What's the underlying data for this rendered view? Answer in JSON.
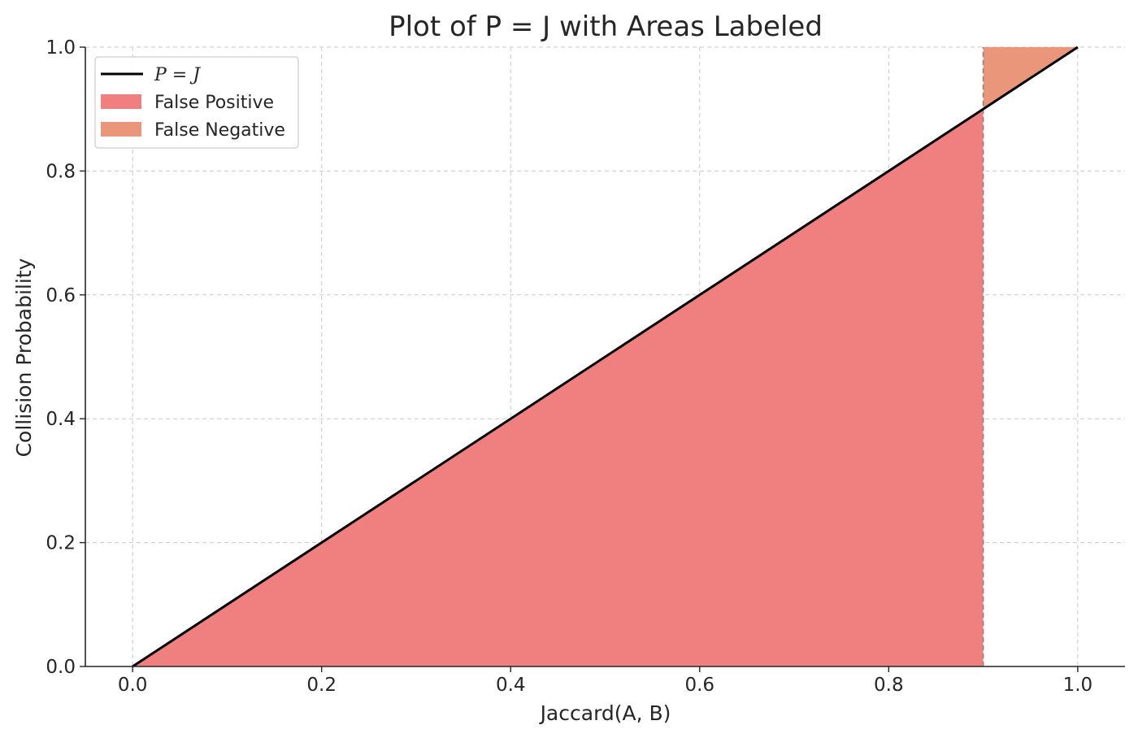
{
  "chart_data": {
    "type": "area",
    "title": "Plot of P = J with Areas Labeled",
    "xlabel": "Jaccard(A, B)",
    "ylabel": "Collision Probability",
    "xlim": [
      -0.05,
      1.05
    ],
    "ylim": [
      0.0,
      1.0
    ],
    "xticks": [
      "0.0",
      "0.2",
      "0.4",
      "0.6",
      "0.8",
      "1.0"
    ],
    "yticks": [
      "0.0",
      "0.2",
      "0.4",
      "0.6",
      "0.8",
      "1.0"
    ],
    "grid": true,
    "threshold": 0.9,
    "line": {
      "name": "P = J",
      "x": [
        0.0,
        1.0
      ],
      "y": [
        0.0,
        1.0
      ],
      "color": "#000000"
    },
    "areas": [
      {
        "name": "False Positive",
        "x_range": [
          0.0,
          0.9
        ],
        "lower": "0",
        "upper": "P = J",
        "color": "#f08080"
      },
      {
        "name": "False Negative",
        "x_range": [
          0.9,
          1.0
        ],
        "lower": "P = J",
        "upper": "1",
        "color": "#e9967a"
      }
    ],
    "legend": {
      "position": "top-left",
      "entries": [
        {
          "label": "P = J",
          "style": "line",
          "color": "#000000"
        },
        {
          "label": "False Positive",
          "style": "patch",
          "color": "#f08080"
        },
        {
          "label": "False Negative",
          "style": "patch",
          "color": "#e9967a"
        }
      ]
    }
  }
}
